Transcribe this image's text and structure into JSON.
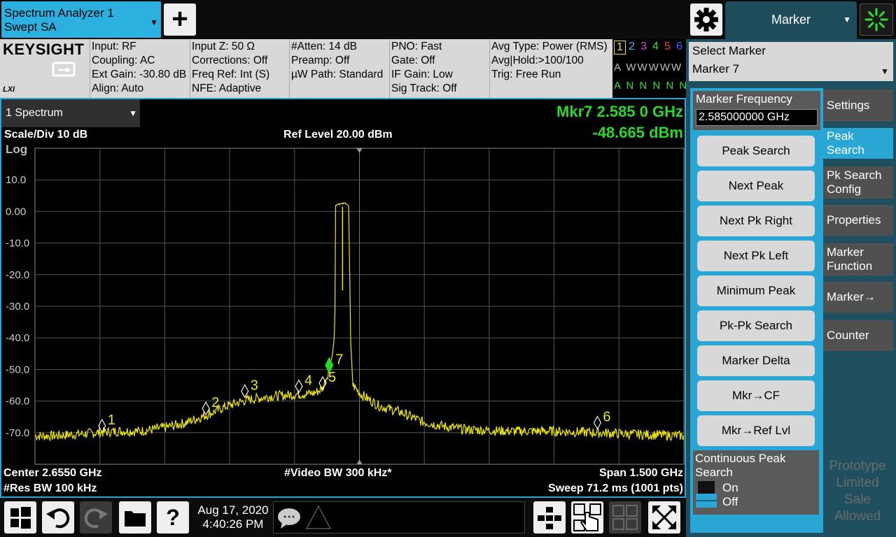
{
  "app_tab": {
    "line1": "Spectrum Analyzer 1",
    "line2": "Swept SA"
  },
  "top_menu": {
    "label": "Marker"
  },
  "logos": {
    "brand": "KEYSIGHT",
    "lxi": "LXI"
  },
  "info": {
    "col1": [
      "Input: RF",
      "Coupling: AC",
      "Ext Gain: -30.80 dB",
      "Align: Auto"
    ],
    "col2": [
      "Input Z: 50 Ω",
      "Corrections: Off",
      "Freq Ref: Int (S)",
      "NFE: Adaptive"
    ],
    "col3": [
      "#Atten: 14 dB",
      "Preamp: Off",
      "µW Path: Standard"
    ],
    "col4": [
      "PNO: Fast",
      "Gate: Off",
      "IF Gain: Low",
      "Sig Track: Off"
    ],
    "col5": [
      "Avg Type: Power (RMS)",
      "Avg|Hold:>100/100",
      "Trig: Free Run"
    ]
  },
  "traces": {
    "numbers": [
      "1",
      "2",
      "3",
      "4",
      "5",
      "6"
    ],
    "colors": [
      "#f0e800",
      "#30c0f0",
      "#e040e0",
      "#30e030",
      "#f04040",
      "#4060ff"
    ],
    "row_type": "A WWWWW",
    "row_det": "A N N N N N"
  },
  "select_marker": {
    "label": "Select Marker",
    "value": "Marker 7"
  },
  "marker_frequency": {
    "label": "Marker Frequency",
    "value": "2.585000000 GHz"
  },
  "function_buttons": [
    "Peak Search",
    "Next Peak",
    "Next Pk Right",
    "Next Pk Left",
    "Minimum Peak",
    "Pk-Pk Search",
    "Marker Delta",
    "Mkr→CF",
    "Mkr→Ref Lvl"
  ],
  "continuous_peak": {
    "label": "Continuous Peak Search",
    "on": "On",
    "off": "Off"
  },
  "side_tabs": [
    "Settings",
    "Peak Search",
    "Pk Search Config",
    "Properties",
    "Marker Function",
    "Marker→",
    "Counter"
  ],
  "watermark": "Prototype Limited Sale Allowed",
  "graph": {
    "window_tab": "1 Spectrum",
    "scale_div": "Scale/Div 10 dB",
    "log_label": "Log",
    "ref_level": "Ref Level 20.00 dBm",
    "marker_readout_freq": "Mkr7  2.585 0 GHz",
    "marker_readout_amp": "-48.665 dBm",
    "center": "Center 2.6550 GHz",
    "res_bw": "#Res BW 100 kHz",
    "video_bw": "#Video BW 300 kHz*",
    "span": "Span 1.500 GHz",
    "sweep": "Sweep 71.2 ms (1001 pts)"
  },
  "chart_data": {
    "type": "line",
    "ylim": [
      -80,
      20
    ],
    "xlim": [
      1.905,
      3.405
    ],
    "y_ticks": [
      "10.0",
      "0.00",
      "-10.0",
      "-20.0",
      "-30.0",
      "-40.0",
      "-50.0",
      "-60.0",
      "-70.0"
    ],
    "grid": true,
    "trace_color": "#f0e800",
    "trace": [
      [
        1.905,
        -71
      ],
      [
        1.95,
        -71
      ],
      [
        2.0,
        -70.5
      ],
      [
        2.05,
        -70
      ],
      [
        2.1,
        -69.5
      ],
      [
        2.15,
        -69.5
      ],
      [
        2.2,
        -68.5
      ],
      [
        2.25,
        -67
      ],
      [
        2.3,
        -64.5
      ],
      [
        2.35,
        -61.5
      ],
      [
        2.4,
        -59.5
      ],
      [
        2.45,
        -58.5
      ],
      [
        2.5,
        -58
      ],
      [
        2.55,
        -57.5
      ],
      [
        2.57,
        -56
      ],
      [
        2.585,
        -50
      ],
      [
        2.593,
        -45
      ],
      [
        2.598,
        -38
      ],
      [
        2.6,
        2
      ],
      [
        2.605,
        2.3
      ],
      [
        2.615,
        2.5
      ],
      [
        2.625,
        2.5
      ],
      [
        2.63,
        1.5
      ],
      [
        2.635,
        -42
      ],
      [
        2.64,
        -55
      ],
      [
        2.66,
        -58
      ],
      [
        2.7,
        -61.5
      ],
      [
        2.75,
        -63.5
      ],
      [
        2.8,
        -66.5
      ],
      [
        2.85,
        -68
      ],
      [
        2.9,
        -69
      ],
      [
        3.0,
        -69.5
      ],
      [
        3.1,
        -69.5
      ],
      [
        3.2,
        -70
      ],
      [
        3.3,
        -70.5
      ],
      [
        3.405,
        -71
      ]
    ],
    "markers": [
      {
        "label": "1",
        "x": 2.06,
        "y": -70.5,
        "active": false
      },
      {
        "label": "2",
        "x": 2.3,
        "y": -65,
        "active": false
      },
      {
        "label": "3",
        "x": 2.39,
        "y": -59.5,
        "active": false
      },
      {
        "label": "4",
        "x": 2.515,
        "y": -58,
        "active": false
      },
      {
        "label": "5",
        "x": 2.57,
        "y": -57,
        "active": false
      },
      {
        "label": "7",
        "x": 2.585,
        "y": -48.665,
        "active": true
      },
      {
        "label": "6",
        "x": 3.205,
        "y": -69.5,
        "active": false
      }
    ]
  }
}
